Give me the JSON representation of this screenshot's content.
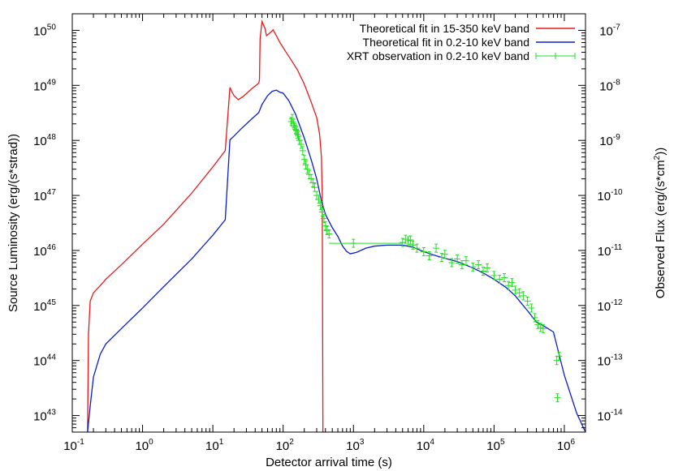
{
  "chart_data": {
    "type": "line",
    "title": "",
    "xlabel": "Detector arrival time (s)",
    "ylabel": "Source Luminosity (erg/(s*strad))",
    "y2label_main": "Observed Flux (erg/(s*cm",
    "y2label_sup": "2",
    "y2label_end": "))",
    "x_scale": "log",
    "y_scale": "log",
    "xlim": [
      0.1,
      2000000
    ],
    "ylim": [
      5e+42,
      2e+50
    ],
    "y2lim": [
      5e-15,
      2e-07
    ],
    "grid": false,
    "legend_position": "top-right",
    "x_ticks": [
      {
        "value": 0.1,
        "base": "10",
        "exp": "-1"
      },
      {
        "value": 1,
        "base": "10",
        "exp": "0"
      },
      {
        "value": 10,
        "base": "10",
        "exp": "1"
      },
      {
        "value": 100,
        "base": "10",
        "exp": "2"
      },
      {
        "value": 1000,
        "base": "10",
        "exp": "3"
      },
      {
        "value": 10000,
        "base": "10",
        "exp": "4"
      },
      {
        "value": 100000,
        "base": "10",
        "exp": "5"
      },
      {
        "value": 1000000,
        "base": "10",
        "exp": "6"
      }
    ],
    "y_ticks": [
      {
        "value": 1e+43,
        "base": "10",
        "exp": "43"
      },
      {
        "value": 1e+44,
        "base": "10",
        "exp": "44"
      },
      {
        "value": 1e+45,
        "base": "10",
        "exp": "45"
      },
      {
        "value": 1e+46,
        "base": "10",
        "exp": "46"
      },
      {
        "value": 1e+47,
        "base": "10",
        "exp": "47"
      },
      {
        "value": 1e+48,
        "base": "10",
        "exp": "48"
      },
      {
        "value": 1e+49,
        "base": "10",
        "exp": "49"
      },
      {
        "value": 1e+50,
        "base": "10",
        "exp": "50"
      }
    ],
    "y2_ticks": [
      {
        "value": 1e-14,
        "base": "10",
        "exp": "-14"
      },
      {
        "value": 1e-13,
        "base": "10",
        "exp": "-13"
      },
      {
        "value": 1e-12,
        "base": "10",
        "exp": "-12"
      },
      {
        "value": 1e-11,
        "base": "10",
        "exp": "-11"
      },
      {
        "value": 1e-10,
        "base": "10",
        "exp": "-10"
      },
      {
        "value": 1e-09,
        "base": "10",
        "exp": "-9"
      },
      {
        "value": 1e-08,
        "base": "10",
        "exp": "-8"
      },
      {
        "value": 1e-07,
        "base": "10",
        "exp": "-7"
      }
    ],
    "series": [
      {
        "name": "Theoretical fit in 15-350 keV band",
        "color": "#e41a1c",
        "style": "line",
        "points": [
          [
            0.165,
            5e+42
          ],
          [
            0.17,
            3e+44
          ],
          [
            0.18,
            1.2e+45
          ],
          [
            0.2,
            1.7e+45
          ],
          [
            0.25,
            2.3e+45
          ],
          [
            0.3,
            3e+45
          ],
          [
            0.5,
            5.5e+45
          ],
          [
            1,
            1.3e+46
          ],
          [
            2,
            3e+46
          ],
          [
            5,
            1.1e+47
          ],
          [
            10,
            3.3e+47
          ],
          [
            15,
            6.5e+47
          ],
          [
            17.5,
            9.2e+48
          ],
          [
            18.5,
            7.8e+48
          ],
          [
            20,
            6.5e+48
          ],
          [
            23,
            5.5e+48
          ],
          [
            27,
            6.3e+48
          ],
          [
            35,
            8.5e+48
          ],
          [
            45,
            1.1e+49
          ],
          [
            46,
            1.25e+49
          ],
          [
            47,
            7e+49
          ],
          [
            50,
            1.45e+50
          ],
          [
            55,
            1.1e+50
          ],
          [
            58,
            8e+49
          ],
          [
            65,
            9e+49
          ],
          [
            72,
            1.02e+50
          ],
          [
            80,
            8e+49
          ],
          [
            90,
            6e+49
          ],
          [
            110,
            4e+49
          ],
          [
            130,
            2.9e+49
          ],
          [
            160,
            1.9e+49
          ],
          [
            200,
            1.05e+49
          ],
          [
            250,
            5e+48
          ],
          [
            300,
            2.6e+48
          ],
          [
            330,
            1.3e+48
          ],
          [
            350,
            5e+47
          ],
          [
            360,
            1e+47
          ],
          [
            368,
            5e+42
          ]
        ]
      },
      {
        "name": "Theoretical fit in 0.2-10 keV band",
        "color": "#0a1ec8",
        "style": "line",
        "points": [
          [
            0.165,
            5e+42
          ],
          [
            0.18,
            1.5e+43
          ],
          [
            0.2,
            5e+43
          ],
          [
            0.25,
            1.3e+44
          ],
          [
            0.3,
            2e+44
          ],
          [
            0.5,
            3.8e+44
          ],
          [
            1,
            9e+44
          ],
          [
            2,
            2.2e+45
          ],
          [
            5,
            7e+45
          ],
          [
            10,
            1.9e+46
          ],
          [
            15,
            3.6e+46
          ],
          [
            17.5,
            1.02e+48
          ],
          [
            20,
            1.2e+48
          ],
          [
            25,
            1.6e+48
          ],
          [
            35,
            2.4e+48
          ],
          [
            45,
            3.2e+48
          ],
          [
            50,
            4.5e+48
          ],
          [
            60,
            6.5e+48
          ],
          [
            70,
            7.8e+48
          ],
          [
            80,
            8.2e+48
          ],
          [
            90,
            7.5e+48
          ],
          [
            100,
            7.2e+48
          ],
          [
            120,
            5.3e+48
          ],
          [
            150,
            3e+48
          ],
          [
            200,
            1.1e+48
          ],
          [
            250,
            4.5e+47
          ],
          [
            300,
            2e+47
          ],
          [
            350,
            8e+46
          ],
          [
            400,
            4.5e+46
          ],
          [
            500,
            2.6e+46
          ],
          [
            600,
            1.8e+46
          ],
          [
            700,
            1.2e+46
          ],
          [
            800,
            9.6e+45
          ],
          [
            900,
            8.7e+45
          ],
          [
            1100,
            9.2e+45
          ],
          [
            1500,
            1.1e+46
          ],
          [
            2000,
            1.2e+46
          ],
          [
            3000,
            1.25e+46
          ],
          [
            5000,
            1.25e+46
          ],
          [
            7000,
            1.15e+46
          ],
          [
            10000,
            9.5e+45
          ],
          [
            15000,
            8e+45
          ],
          [
            20000,
            7.2e+45
          ],
          [
            30000,
            6.3e+45
          ],
          [
            50000,
            4.8e+45
          ],
          [
            70000,
            3.9e+45
          ],
          [
            100000,
            3e+45
          ],
          [
            150000,
            2.1e+45
          ],
          [
            200000,
            1.5e+45
          ],
          [
            300000,
            8e+44
          ],
          [
            400000,
            5e+44
          ],
          [
            500000,
            4.3e+44
          ],
          [
            700000,
            3.3e+44
          ],
          [
            1000000,
            5.4e+43
          ],
          [
            1500000,
            1.1e+43
          ],
          [
            2000000,
            5e+42
          ]
        ]
      },
      {
        "name": "XRT observation in 0.2-10 keV band",
        "color": "#22dd22",
        "style": "errorbars",
        "points": [
          [
            130,
            2.2e+48
          ],
          [
            135,
            2.5e+48
          ],
          [
            140,
            2e+48
          ],
          [
            145,
            1.8e+48
          ],
          [
            150,
            1.6e+48
          ],
          [
            155,
            1.5e+48
          ],
          [
            160,
            1.3e+48
          ],
          [
            165,
            1.2e+48
          ],
          [
            170,
            1e+48
          ],
          [
            180,
            8.5e+47
          ],
          [
            190,
            6.5e+47
          ],
          [
            200,
            4.5e+47
          ],
          [
            210,
            3.6e+47
          ],
          [
            220,
            3e+47
          ],
          [
            235,
            2.4e+47
          ],
          [
            250,
            2e+47
          ],
          [
            265,
            1.7e+47
          ],
          [
            280,
            1.4e+47
          ],
          [
            300,
            1e+47
          ],
          [
            320,
            8.5e+46
          ],
          [
            340,
            6.5e+46
          ],
          [
            360,
            5e+46
          ],
          [
            380,
            3.8e+46
          ],
          [
            400,
            2.8e+46
          ],
          [
            420,
            2.3e+46
          ],
          [
            450,
            2e+46
          ],
          [
            1000,
            1.35e+46
          ],
          [
            5000,
            1.4e+46
          ],
          [
            5500,
            1.6e+46
          ],
          [
            6000,
            1.5e+46
          ],
          [
            6500,
            1.55e+46
          ],
          [
            7000,
            1.25e+46
          ],
          [
            8000,
            1.1e+46
          ],
          [
            10000,
            9.5e+45
          ],
          [
            12000,
            8e+45
          ],
          [
            15000,
            1.1e+46
          ],
          [
            18000,
            7.5e+45
          ],
          [
            20000,
            8.5e+45
          ],
          [
            25000,
            6e+45
          ],
          [
            30000,
            7e+45
          ],
          [
            35000,
            5.5e+45
          ],
          [
            40000,
            6.5e+45
          ],
          [
            50000,
            5e+45
          ],
          [
            60000,
            5.5e+45
          ],
          [
            70000,
            4.2e+45
          ],
          [
            80000,
            4.8e+45
          ],
          [
            100000,
            3.5e+45
          ],
          [
            120000,
            3e+45
          ],
          [
            140000,
            3.2e+45
          ],
          [
            160000,
            2.3e+45
          ],
          [
            180000,
            2.6e+45
          ],
          [
            200000,
            1.9e+45
          ],
          [
            230000,
            1.7e+45
          ],
          [
            260000,
            1.5e+45
          ],
          [
            300000,
            1.2e+45
          ],
          [
            340000,
            9e+44
          ],
          [
            380000,
            6e+44
          ],
          [
            420000,
            4.5e+44
          ],
          [
            460000,
            4e+44
          ],
          [
            500000,
            3.8e+44
          ],
          [
            780000,
            1e+44
          ],
          [
            840000,
            1.2e+44
          ],
          [
            800000,
            2.1e+43
          ]
        ]
      }
    ]
  }
}
